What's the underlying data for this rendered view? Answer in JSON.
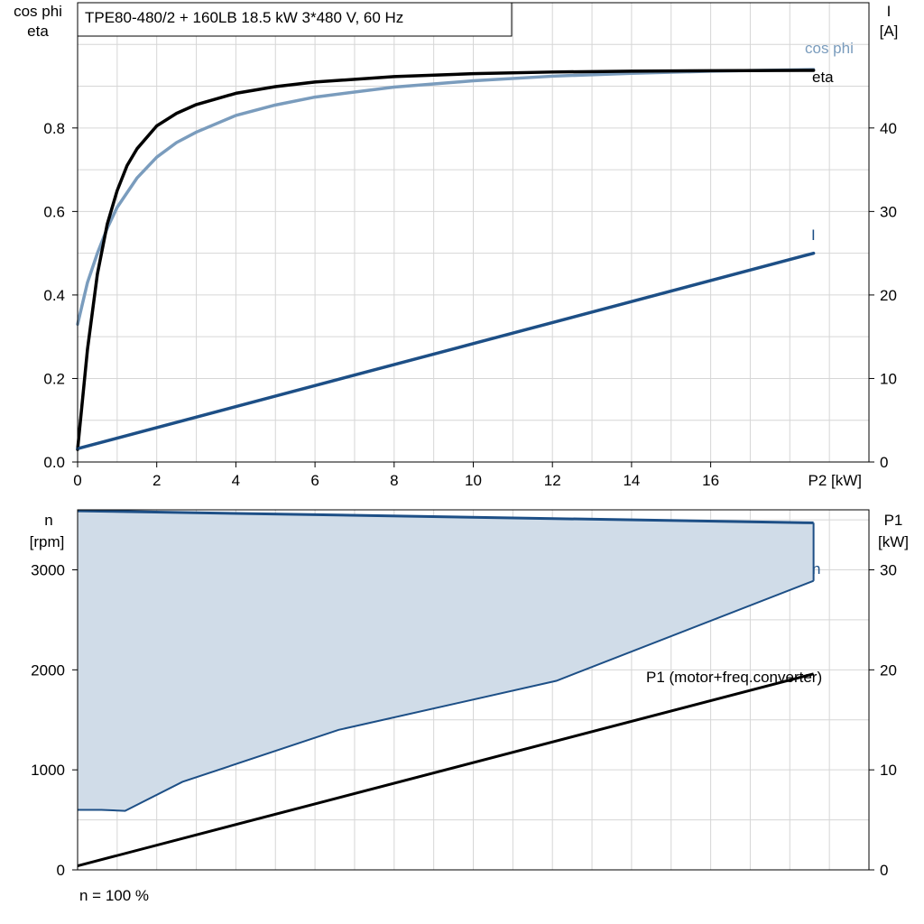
{
  "header": {
    "title": "TPE80-480/2 + 160LB   18.5 kW   3*480 V, 60 Hz"
  },
  "footer": {
    "speed_note": "n = 100 %"
  },
  "colors": {
    "eta": "#000000",
    "cos_phi": "#7a9cbd",
    "current": "#1d4f86",
    "speed": "#1d4f86",
    "speed_fill": "#d0dce8",
    "p1": "#000000",
    "grid": "#d6d6d6"
  },
  "chart_data": [
    {
      "type": "line",
      "xlabel": "P2 [kW]",
      "ylabel_left": [
        "cos phi",
        "eta"
      ],
      "ylabel_right": [
        "I",
        "[A]"
      ],
      "xlim": [
        0,
        20
      ],
      "ylim_left": [
        0,
        1.1
      ],
      "ylim_right": [
        0,
        55
      ],
      "x_ticks": [
        0,
        2,
        4,
        6,
        8,
        10,
        12,
        14,
        16
      ],
      "x_tick_labels": [
        "0",
        "2",
        "4",
        "6",
        "8",
        "10",
        "12",
        "14",
        "16"
      ],
      "y_left_ticks": [
        0,
        0.2,
        0.4,
        0.6,
        0.8
      ],
      "y_left_tick_labels": [
        "0.0",
        "0.2",
        "0.4",
        "0.6",
        "0.8"
      ],
      "y_right_ticks": [
        0,
        10,
        20,
        30,
        40
      ],
      "y_right_tick_labels": [
        "0",
        "10",
        "20",
        "30",
        "40"
      ],
      "grid": true,
      "series": [
        {
          "name": "eta",
          "axis": "left",
          "x": [
            0,
            0.25,
            0.5,
            0.75,
            1,
            1.25,
            1.5,
            2,
            2.5,
            3,
            4,
            5,
            6,
            8,
            10,
            12,
            14,
            16,
            18.6
          ],
          "y": [
            0.03,
            0.27,
            0.45,
            0.57,
            0.65,
            0.71,
            0.75,
            0.805,
            0.835,
            0.856,
            0.883,
            0.899,
            0.91,
            0.923,
            0.93,
            0.934,
            0.936,
            0.937,
            0.938
          ]
        },
        {
          "name": "cos phi",
          "axis": "left",
          "x": [
            0,
            0.25,
            0.5,
            0.75,
            1,
            1.5,
            2,
            2.5,
            3,
            4,
            5,
            6,
            8,
            10,
            12,
            14,
            16,
            18.6
          ],
          "y": [
            0.33,
            0.43,
            0.5,
            0.56,
            0.61,
            0.68,
            0.73,
            0.765,
            0.79,
            0.83,
            0.855,
            0.874,
            0.898,
            0.913,
            0.924,
            0.931,
            0.936,
            0.94
          ]
        },
        {
          "name": "I",
          "axis": "right",
          "x": [
            0,
            18.6
          ],
          "y": [
            1.6,
            25
          ]
        }
      ]
    },
    {
      "type": "area",
      "xlim": [
        0,
        20
      ],
      "ylim_left": [
        0,
        3600
      ],
      "ylim_right": [
        0,
        36
      ],
      "ylabel_left": [
        "n",
        "[rpm]"
      ],
      "ylabel_right": [
        "P1",
        "[kW]"
      ],
      "y_left_ticks": [
        0,
        1000,
        2000,
        3000
      ],
      "y_left_tick_labels": [
        "0",
        "1000",
        "2000",
        "3000"
      ],
      "y_right_ticks": [
        0,
        10,
        20,
        30
      ],
      "y_right_tick_labels": [
        "0",
        "10",
        "20",
        "30"
      ],
      "grid": true,
      "speed_range": {
        "name": "n",
        "x_max": [
          0,
          18.6
        ],
        "n_max": [
          3590,
          3470
        ],
        "x_min": [
          0,
          0.6,
          1.2,
          2.65,
          6.6,
          12.1,
          18.6
        ],
        "n_min": [
          600,
          600,
          590,
          880,
          1400,
          1890,
          2890
        ]
      },
      "p1": {
        "name": "P1 (motor+freq.converter)",
        "x": [
          0,
          18.6
        ],
        "y": [
          0.4,
          19.6
        ]
      }
    }
  ]
}
